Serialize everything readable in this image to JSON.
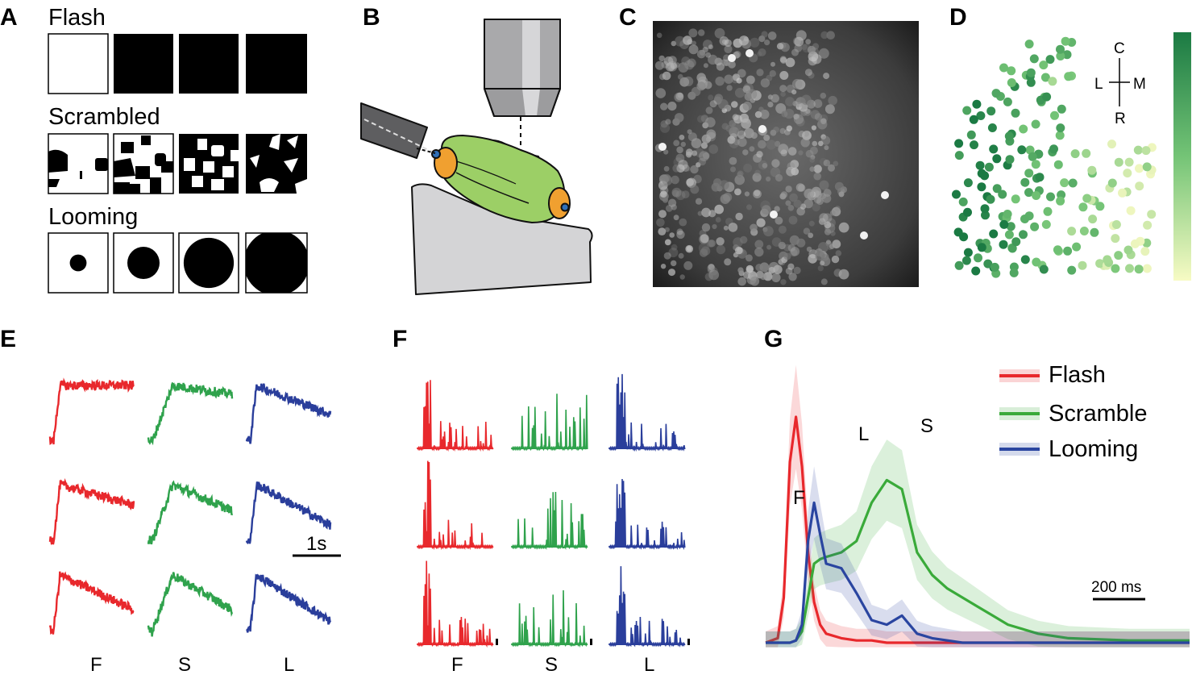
{
  "panels": {
    "A": {
      "letter": "A",
      "rows": [
        {
          "label": "Flash"
        },
        {
          "label": "Scrambled"
        },
        {
          "label": "Looming"
        }
      ],
      "looming_disk_sizes": [
        0.14,
        0.27,
        0.42,
        0.55
      ]
    },
    "B": {
      "letter": "B"
    },
    "C": {
      "letter": "C"
    },
    "D": {
      "letter": "D",
      "orientation": {
        "top": "C",
        "bottom": "R",
        "left": "L",
        "right": "M"
      },
      "colorbar_colors": [
        "#1b7a43",
        "#74c476",
        "#f7fbc4"
      ]
    },
    "E": {
      "letter": "E",
      "column_labels": [
        "F",
        "S",
        "L"
      ],
      "scalebar_label": "1s"
    },
    "F": {
      "letter": "F",
      "column_labels": [
        "F",
        "S",
        "L"
      ]
    },
    "G": {
      "letter": "G",
      "peak_labels": [
        "F",
        "L",
        "S"
      ],
      "scalebar_label": "200 ms",
      "legend": [
        {
          "name": "Flash",
          "color": "#e8282c"
        },
        {
          "name": "Scramble",
          "color": "#3aaa3a"
        },
        {
          "name": "Looming",
          "color": "#2a45a0"
        }
      ]
    }
  },
  "colors": {
    "flash": "#e8282c",
    "scramble": "#2fa24c",
    "looming": "#2a3e9b"
  },
  "chart_data": {
    "type": "line",
    "title": "",
    "xlabel": "",
    "ylabel": "",
    "x_unit": "ms",
    "x": [
      0,
      40,
      60,
      80,
      100,
      120,
      140,
      160,
      180,
      200,
      250,
      300,
      350,
      400,
      450,
      500,
      550,
      600,
      650,
      700,
      750,
      800,
      900,
      1000,
      1200,
      1400
    ],
    "series": [
      {
        "name": "Flash",
        "values": [
          0.0,
          0.02,
          0.2,
          0.8,
          1.0,
          0.78,
          0.4,
          0.18,
          0.08,
          0.04,
          0.02,
          0.01,
          0.01,
          0.0,
          0.0,
          0.0,
          0.0,
          0.0,
          0.0,
          0.0,
          0.0,
          0.0,
          0.0,
          0.0,
          0.0,
          0.0
        ]
      },
      {
        "name": "Scramble",
        "values": [
          0.0,
          0.0,
          0.0,
          0.0,
          0.01,
          0.05,
          0.2,
          0.35,
          0.37,
          0.38,
          0.4,
          0.45,
          0.62,
          0.72,
          0.68,
          0.4,
          0.3,
          0.24,
          0.2,
          0.16,
          0.12,
          0.08,
          0.04,
          0.02,
          0.01,
          0.01
        ]
      },
      {
        "name": "Looming",
        "values": [
          0.0,
          0.0,
          0.0,
          0.0,
          0.01,
          0.08,
          0.45,
          0.62,
          0.48,
          0.35,
          0.33,
          0.22,
          0.1,
          0.08,
          0.12,
          0.04,
          0.02,
          0.01,
          0.0,
          0.0,
          0.0,
          0.0,
          0.0,
          0.0,
          0.0,
          0.0
        ]
      }
    ]
  }
}
